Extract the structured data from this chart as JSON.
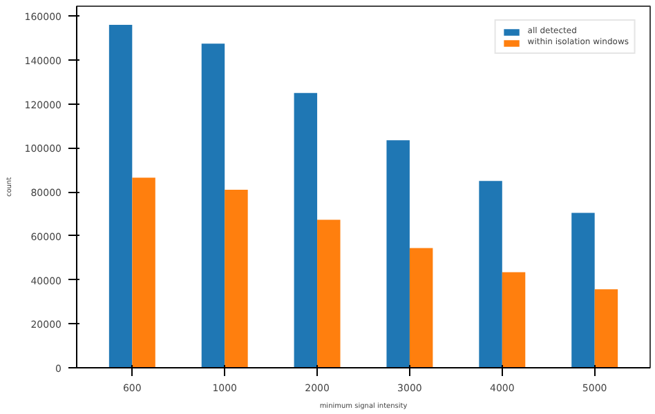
{
  "chart_data": {
    "type": "bar",
    "xlabel": "minimum signal intensity",
    "ylabel": "count",
    "categories": [
      "600",
      "1000",
      "2000",
      "3000",
      "4000",
      "5000"
    ],
    "series": [
      {
        "name": "all detected",
        "color": "#1f77b4",
        "values": [
          156000,
          147500,
          125000,
          103500,
          85000,
          70500
        ]
      },
      {
        "name": "within isolation windows",
        "color": "#ff7f0e",
        "values": [
          86500,
          81000,
          67300,
          54500,
          43500,
          35700
        ]
      }
    ],
    "ylim": [
      0,
      164500
    ],
    "yticks": [
      0,
      20000,
      40000,
      60000,
      80000,
      100000,
      120000,
      140000,
      160000
    ],
    "grid": false,
    "legend": "top right"
  }
}
